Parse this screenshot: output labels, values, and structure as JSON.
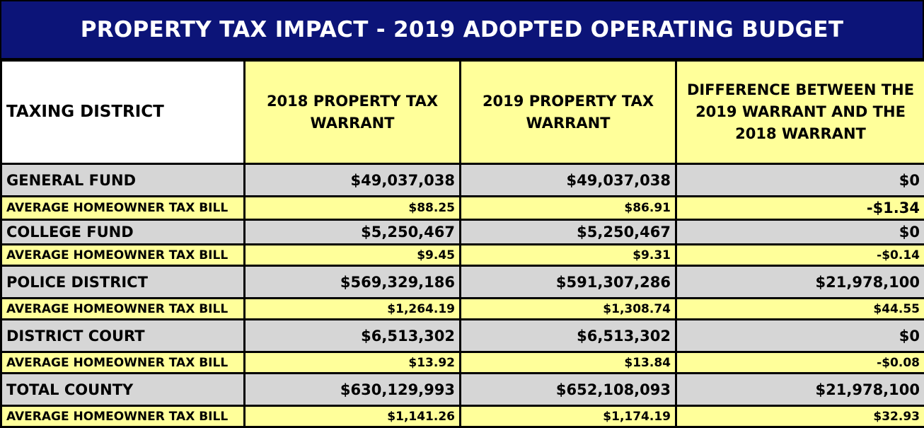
{
  "title": "PROPERTY TAX IMPACT - 2019 ADOPTED OPERATING BUDGET",
  "headers": {
    "district": "TAXING DISTRICT",
    "col2018": "2018  PROPERTY TAX WARRANT",
    "col2019": "2019  PROPERTY TAX WARRANT",
    "diff": "DIFFERENCE BETWEEN THE 2019 WARRANT AND THE 2018 WARRANT"
  },
  "rows": [
    {
      "label": "GENERAL FUND",
      "v2018": "$49,037,038",
      "v2019": "$49,037,038",
      "diff": "$0"
    },
    {
      "label": "AVERAGE HOMEOWNER TAX BILL",
      "v2018": "$88.25",
      "v2019": "$86.91",
      "diff": "-$1.34"
    },
    {
      "label": "COLLEGE FUND",
      "v2018": "$5,250,467",
      "v2019": "$5,250,467",
      "diff": "$0"
    },
    {
      "label": "AVERAGE HOMEOWNER TAX BILL",
      "v2018": "$9.45",
      "v2019": "$9.31",
      "diff": "-$0.14"
    },
    {
      "label": "POLICE DISTRICT",
      "v2018": "$569,329,186",
      "v2019": "$591,307,286",
      "diff": "$21,978,100"
    },
    {
      "label": "AVERAGE HOMEOWNER TAX BILL",
      "v2018": "$1,264.19",
      "v2019": "$1,308.74",
      "diff": "$44.55"
    },
    {
      "label": "DISTRICT COURT",
      "v2018": "$6,513,302",
      "v2019": "$6,513,302",
      "diff": "$0"
    },
    {
      "label": "AVERAGE HOMEOWNER TAX BILL",
      "v2018": "$13.92",
      "v2019": "$13.84",
      "diff": "-$0.08"
    },
    {
      "label": "TOTAL COUNTY",
      "v2018": "$630,129,993",
      "v2019": "$652,108,093",
      "diff": "$21,978,100"
    },
    {
      "label": "AVERAGE HOMEOWNER TAX BILL",
      "v2018": "$1,141.26",
      "v2019": "$1,174.19",
      "diff": "$32.93"
    }
  ]
}
